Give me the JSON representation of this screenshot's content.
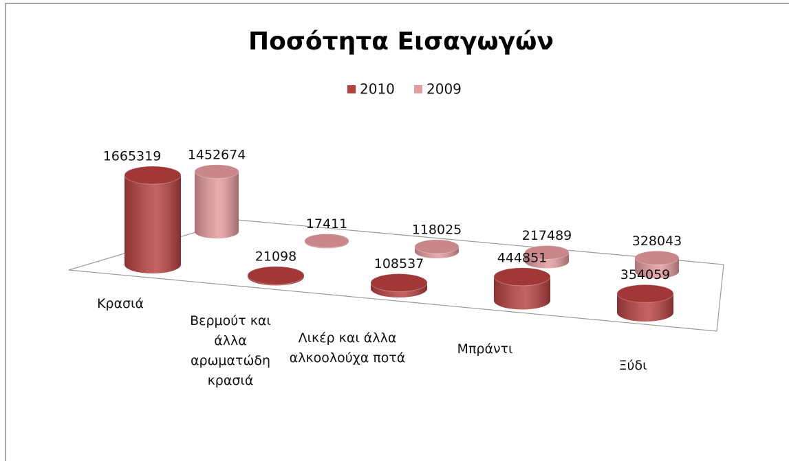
{
  "chart_data": {
    "type": "bar3d",
    "title": "Ποσότητα Εισαγωγών",
    "categories": [
      "Κρασιά",
      "Βερμούτ και άλλα αρωματώδη κρασιά",
      "Λικέρ και άλλα αλκοολούχα ποτά",
      "Μπράντι",
      "Ξύδι"
    ],
    "series": [
      {
        "name": "2010",
        "color": "#b8403f",
        "values": [
          1665319,
          21098,
          108537,
          444851,
          354059
        ]
      },
      {
        "name": "2009",
        "color": "#e59a9d",
        "values": [
          1452674,
          17411,
          118025,
          217489,
          328043
        ]
      }
    ],
    "legend": "top"
  }
}
